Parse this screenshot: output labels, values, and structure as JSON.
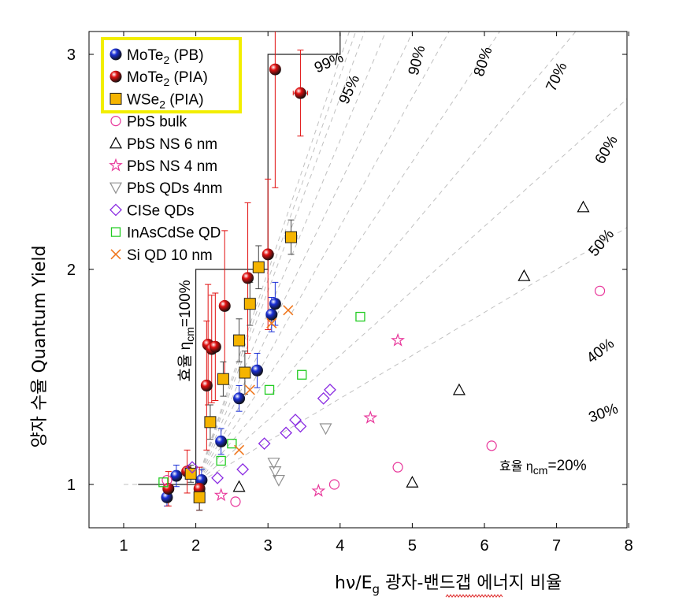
{
  "chart_data": {
    "type": "scatter",
    "xlabel": "hν/E",
    "xlabel_sub": "g",
    "xlabel_korean": "광자-밴드갭 에너지 비율",
    "ylabel": "Quantum Yield",
    "ylabel_korean": "양자 수율",
    "xlim": [
      0.5,
      8
    ],
    "ylim": [
      0.8,
      3.1
    ],
    "xticks": [
      1,
      2,
      3,
      4,
      5,
      6,
      7,
      8
    ],
    "yticks": [
      1,
      2,
      3
    ],
    "efficiency_guides": [
      {
        "label": "20%",
        "eta": 0.2
      },
      {
        "label": "30%",
        "eta": 0.3
      },
      {
        "label": "40%",
        "eta": 0.4
      },
      {
        "label": "50%",
        "eta": 0.5
      },
      {
        "label": "60%",
        "eta": 0.6
      },
      {
        "label": "70%",
        "eta": 0.7
      },
      {
        "label": "80%",
        "eta": 0.8
      },
      {
        "label": "90%",
        "eta": 0.9
      },
      {
        "label": "95%",
        "eta": 0.95
      },
      {
        "label": "99%",
        "eta": 0.99
      }
    ],
    "eta100_label": "효율 η",
    "eta100_label_sub": "cm",
    "eta100_label_tail": "=100%",
    "eta20_prefix": "효율 η",
    "eta20_sub": "cm",
    "eta20_tail": "=20%",
    "series": [
      {
        "name": "MoTe",
        "sub": "2",
        "tail": " (PB)",
        "marker": "ball",
        "color": "#1a2fd6",
        "framed": true,
        "points": [
          [
            1.6,
            0.94
          ],
          [
            1.73,
            1.04
          ],
          [
            2.08,
            1.02
          ],
          [
            2.35,
            1.2
          ],
          [
            2.6,
            1.4
          ],
          [
            2.85,
            1.53
          ],
          [
            3.05,
            1.79
          ],
          [
            3.1,
            1.84
          ]
        ],
        "xerr": [
          0.07,
          0.07,
          0.07,
          0.07,
          0.07,
          0.07,
          0.07,
          0.07
        ],
        "yerr": [
          0.04,
          0.05,
          0.05,
          0.06,
          0.06,
          0.08,
          0.08,
          0.1
        ]
      },
      {
        "name": "MoTe",
        "sub": "2",
        "tail": " (PIA)",
        "marker": "ball",
        "color": "#e11010",
        "framed": true,
        "points": [
          [
            1.62,
            0.98
          ],
          [
            1.88,
            1.06
          ],
          [
            2.05,
            0.98
          ],
          [
            2.15,
            1.46
          ],
          [
            2.17,
            1.65
          ],
          [
            2.22,
            1.63
          ],
          [
            2.27,
            1.64
          ],
          [
            2.4,
            1.83
          ],
          [
            2.72,
            1.96
          ],
          [
            3.0,
            2.07
          ],
          [
            3.1,
            2.93
          ],
          [
            3.45,
            2.82
          ]
        ],
        "xerr": [
          0.07,
          0.07,
          0.07,
          0.07,
          0.07,
          0.07,
          0.07,
          0.07,
          0.07,
          0.07,
          0.07,
          0.1
        ],
        "yerr": [
          0.08,
          0.1,
          0.1,
          0.3,
          0.28,
          0.25,
          0.25,
          0.35,
          0.35,
          0.35,
          0.55,
          0.2
        ]
      },
      {
        "name": "WSe",
        "sub": "2",
        "tail": " (PIA)",
        "marker": "square",
        "color": "#f5b400",
        "framed": true,
        "points": [
          [
            1.93,
            1.05
          ],
          [
            2.05,
            0.94
          ],
          [
            2.2,
            1.29
          ],
          [
            2.38,
            1.49
          ],
          [
            2.6,
            1.67
          ],
          [
            2.68,
            1.52
          ],
          [
            2.75,
            1.84
          ],
          [
            2.87,
            2.01
          ],
          [
            3.32,
            2.15
          ]
        ],
        "xerr": [
          0.06,
          0.06,
          0.06,
          0.06,
          0.06,
          0.06,
          0.06,
          0.07,
          0.08
        ],
        "yerr": [
          0.04,
          0.06,
          0.08,
          0.08,
          0.1,
          0.1,
          0.1,
          0.1,
          0.08
        ]
      },
      {
        "name": "PbS bulk",
        "marker": "circle",
        "color": "#e8369a",
        "points": [
          [
            1.6,
            1.02
          ],
          [
            2.55,
            0.92
          ],
          [
            3.92,
            1.0
          ],
          [
            4.8,
            1.08
          ],
          [
            6.1,
            1.18
          ],
          [
            7.6,
            1.9
          ]
        ]
      },
      {
        "name": "PbS NS 6 nm",
        "marker": "triangle-up",
        "color": "#000000",
        "points": [
          [
            2.6,
            0.99
          ],
          [
            5.0,
            1.01
          ],
          [
            5.65,
            1.44
          ],
          [
            6.55,
            1.97
          ],
          [
            7.37,
            2.29
          ]
        ]
      },
      {
        "name": "PbS NS 4 nm",
        "marker": "star",
        "color": "#e8369a",
        "points": [
          [
            2.35,
            0.95
          ],
          [
            3.7,
            0.97
          ],
          [
            4.42,
            1.31
          ],
          [
            4.8,
            1.67
          ]
        ]
      },
      {
        "name": "PbS QDs 4nm",
        "marker": "triangle-down",
        "color": "#909090",
        "points": [
          [
            3.08,
            1.1
          ],
          [
            3.1,
            1.06
          ],
          [
            3.15,
            1.02
          ],
          [
            3.8,
            1.26
          ]
        ]
      },
      {
        "name": "CISe QDs",
        "marker": "diamond",
        "color": "#8a2be2",
        "points": [
          [
            1.95,
            1.08
          ],
          [
            2.3,
            1.03
          ],
          [
            2.65,
            1.07
          ],
          [
            2.95,
            1.19
          ],
          [
            3.25,
            1.24
          ],
          [
            3.38,
            1.3
          ],
          [
            3.45,
            1.27
          ],
          [
            3.77,
            1.4
          ],
          [
            3.86,
            1.44
          ]
        ]
      },
      {
        "name": "InAsCdSe QD",
        "marker": "square-open",
        "color": "#22cc22",
        "points": [
          [
            1.55,
            1.01
          ],
          [
            2.35,
            1.11
          ],
          [
            2.5,
            1.19
          ],
          [
            3.02,
            1.44
          ],
          [
            3.47,
            1.51
          ],
          [
            4.28,
            1.78
          ]
        ]
      },
      {
        "name": "Si QD 10 nm",
        "marker": "x",
        "color": "#f07820",
        "points": [
          [
            2.6,
            1.16
          ],
          [
            2.75,
            1.44
          ],
          [
            3.05,
            1.75
          ],
          [
            3.28,
            1.81
          ]
        ]
      }
    ]
  }
}
